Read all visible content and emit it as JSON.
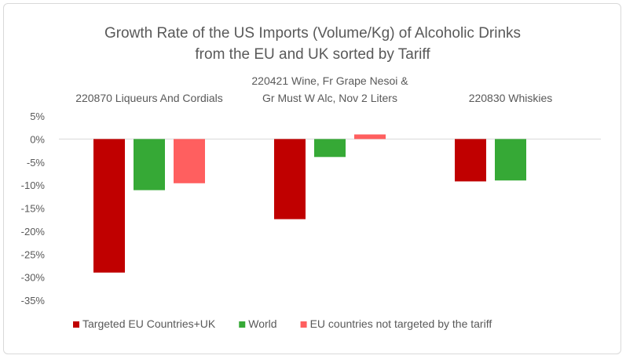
{
  "chart_data": {
    "type": "bar",
    "title": [
      "Growth Rate of the US Imports (Volume/Kg) of Alcoholic Drinks",
      "from the EU and UK sorted by Tariff"
    ],
    "categories": [
      [
        "220870 Liqueurs And Cordials"
      ],
      [
        "220421 Wine, Fr Grape Nesoi &",
        "Gr Must W Alc, Nov 2 Liters"
      ],
      [
        "220830 Whiskies"
      ]
    ],
    "series": [
      {
        "name": "Targeted EU Countries+UK",
        "color": "#c00000",
        "values": [
          -29.0,
          -17.4,
          -9.2
        ]
      },
      {
        "name": "World",
        "color": "#36a936",
        "values": [
          -11.1,
          -3.9,
          -9.0
        ]
      },
      {
        "name": "EU countries not targeted by the tariff",
        "color": "#ff5f5f",
        "values": [
          -9.6,
          1.0,
          null
        ]
      }
    ],
    "yticks": [
      "5%",
      "0%",
      "-5%",
      "-10%",
      "-15%",
      "-20%",
      "-25%",
      "-30%",
      "-35%"
    ],
    "ylim": [
      -35,
      5
    ],
    "ylabel": "",
    "xlabel": "",
    "category_labels_position": "top",
    "grid": false,
    "legend": "bottom"
  }
}
